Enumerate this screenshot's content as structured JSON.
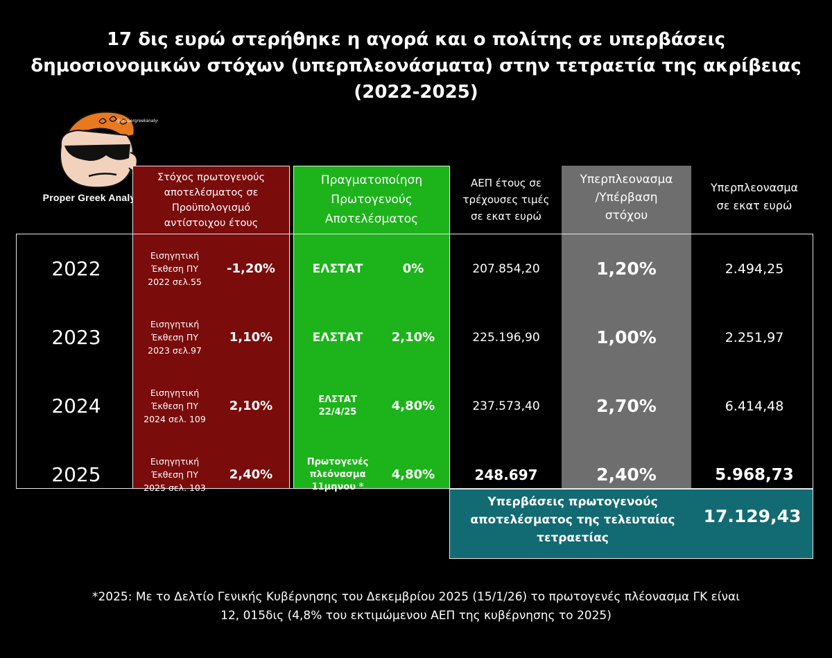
{
  "title": {
    "line1": "17 δις ευρώ στερήθηκε η αγορά και ο πολίτης σε υπερβάσεις",
    "line2": "δημοσιονομικών στόχων (υπερπλεονάσματα) στην  τετραετία της ακρίβειας",
    "line3": "(2022-2025)"
  },
  "logo": {
    "caption": "Proper Greek Analyst",
    "handle": "@propergreekanalyst"
  },
  "headers": {
    "target": [
      "Στόχος πρωτογενούς",
      "αποτελέσματος σε",
      "Προϋπολογισμό",
      "αντίστοιχου έτους"
    ],
    "actual": [
      "Πραγματοποίηση",
      "Πρωτογενούς",
      "Αποτελέσματος"
    ],
    "gdp": [
      "ΑΕΠ έτους σε",
      "τρέχουσες τιμές",
      "σε εκατ ευρώ"
    ],
    "excess_pct": [
      "Υπερπλεονασμα",
      "/Υπέρβαση",
      "στόχου"
    ],
    "excess_mio": [
      "Υπερπλεονασμα",
      "σε εκατ ευρώ"
    ]
  },
  "chart_data": {
    "type": "table",
    "title": "17 δις ευρώ στερήθηκε η αγορά και ο πολίτης σε υπερβάσεις δημοσιονομικών στόχων (υπερπλεονάσματα) στην  τετραετία της ακρίβειας (2022-2025)",
    "columns": [
      "",
      "Στόχος πρωτογενούς αποτελέσματος σε Προϋπολογισμό αντίστοιχου έτους",
      "Πραγματοποίηση Πρωτογενούς Αποτελέσματος",
      "ΑΕΠ έτους σε τρέχουσες τιμές σε εκατ ευρώ",
      "Υπερπλεονασμα /Υπέρβαση στόχου",
      "Υπερπλεονασμα σε εκατ ευρώ"
    ],
    "rows": [
      {
        "year": "2022",
        "source": [
          "Εισηγητική",
          "Έκθεση ΠΥ",
          "2022 σελ.55"
        ],
        "target": "-1,20%",
        "actual_source": [
          "ΕΛΣΤΑΤ"
        ],
        "actual": "0%",
        "gdp": "207.854,20",
        "excess_pct": "1,20%",
        "excess_mio": "2.494,25"
      },
      {
        "year": "2023",
        "source": [
          "Εισηγητική",
          "Έκθεση ΠΥ",
          "2023 σελ.97"
        ],
        "target": "1,10%",
        "actual_source": [
          "ΕΛΣΤΑΤ"
        ],
        "actual": "2,10%",
        "gdp": "225.196,90",
        "excess_pct": "1,00%",
        "excess_mio": "2.251,97"
      },
      {
        "year": "2024",
        "source": [
          "Εισηγητική",
          "Έκθεση ΠΥ",
          "2024 σελ. 109"
        ],
        "target": "2,10%",
        "actual_source": [
          "ΕΛΣΤΑΤ",
          "22/4/25"
        ],
        "actual": "4,80%",
        "gdp": "237.573,40",
        "excess_pct": "2,70%",
        "excess_mio": "6.414,48"
      },
      {
        "year": "2025",
        "source": [
          "Εισηγητική",
          "Έκθεση ΠΥ",
          "2025 σελ. 103"
        ],
        "target": "2,40%",
        "actual_source": [
          "Πρωτογενές",
          "πλεόνασμα",
          "11μηνου *"
        ],
        "actual": "4,80%",
        "gdp": "248.697",
        "excess_pct": "2,40%",
        "excess_mio": "5.968,73"
      }
    ],
    "total": {
      "label": [
        "Υπερβάσεις πρωτογενούς",
        "αποτελέσματος της τελευταίας",
        "τετραετίας"
      ],
      "value": "17.129,43"
    }
  },
  "footnote": {
    "line1": "*2025: Με το Δελτίο Γενικής Κυβέρνησης του Δεκεμβρίου 2025 (15/1/26) το πρωτογενές πλέονασμα ΓΚ είναι",
    "line2": "12, 015δις (4,8% του εκτιμώμενου ΑΕΠ της κυβέρνησης το 2025)"
  },
  "colors": {
    "target_col": "#7a0c0c",
    "actual_col": "#1db31b",
    "excess_col": "#6e6e6e",
    "total_box": "#126a73"
  }
}
